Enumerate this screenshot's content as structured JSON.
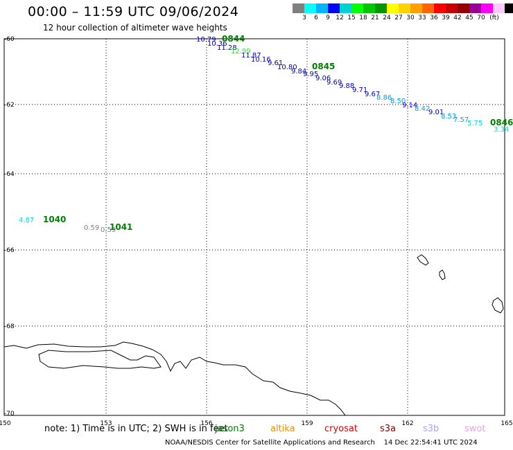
{
  "header": {
    "title": "00:00 – 11:59 UTC 09/06/2024",
    "subtitle": "12 hour collection of altimeter wave heights"
  },
  "colorbar": {
    "colors": [
      "#7f7f7f",
      "#00ffff",
      "#00b4ff",
      "#0000ff",
      "#00d2d2",
      "#00ff00",
      "#00c800",
      "#009600",
      "#ffff00",
      "#ffd200",
      "#ffa000",
      "#ff6400",
      "#ff0000",
      "#c80000",
      "#960000",
      "#960096",
      "#ff00ff",
      "#ffc8ff",
      "#000000"
    ],
    "labels": [
      "3",
      "6",
      "9",
      "12",
      "15",
      "18",
      "21",
      "24",
      "27",
      "30",
      "33",
      "36",
      "39",
      "42",
      "45",
      "70"
    ],
    "unit": "(ft)"
  },
  "axes": {
    "x_ticks": [
      "150",
      "153",
      "156",
      "159",
      "162",
      "165"
    ],
    "y_ticks": [
      "-60",
      "-62",
      "-64",
      "-66",
      "-68",
      "-70"
    ]
  },
  "passes": [
    {
      "label": "0844",
      "color": "#008000"
    },
    {
      "label": "0845",
      "color": "#008000"
    },
    {
      "label": "0846",
      "color": "#008000"
    },
    {
      "label": "1040",
      "color": "#008000"
    },
    {
      "label": "1041",
      "color": "#008000"
    }
  ],
  "wave_heights": [
    {
      "value": "10.79",
      "color": "#0000c8"
    },
    {
      "value": "10.36",
      "color": "#0000c8"
    },
    {
      "value": "11.28",
      "color": "#0000c8"
    },
    {
      "value": "12.99",
      "color": "#44dd44"
    },
    {
      "value": "11.87",
      "color": "#0000c8"
    },
    {
      "value": "10.16",
      "color": "#0000c8"
    },
    {
      "value": "9.61",
      "color": "#0000c8"
    },
    {
      "value": "10.80",
      "color": "#0000c8"
    },
    {
      "value": "9.84",
      "color": "#0000c8"
    },
    {
      "value": "9.95",
      "color": "#0000c8"
    },
    {
      "value": "9.06",
      "color": "#0000c8"
    },
    {
      "value": "9.69",
      "color": "#0000c8"
    },
    {
      "value": "9.88",
      "color": "#0000c8"
    },
    {
      "value": "9.71",
      "color": "#0000c8"
    },
    {
      "value": "9.67",
      "color": "#0000c8"
    },
    {
      "value": "8.86",
      "color": "#00a0ff"
    },
    {
      "value": "8.50",
      "color": "#00a0ff"
    },
    {
      "value": "9.14",
      "color": "#0000c8"
    },
    {
      "value": "8.42",
      "color": "#00a0ff"
    },
    {
      "value": "9.01",
      "color": "#0000c8"
    },
    {
      "value": "8.53",
      "color": "#00a0ff"
    },
    {
      "value": "7.57",
      "color": "#00a0ff"
    },
    {
      "value": "5.75",
      "color": "#00e0e0"
    },
    {
      "value": "3.34",
      "color": "#00e0e0"
    },
    {
      "value": "4.87",
      "color": "#00e0e0"
    },
    {
      "value": "0.59",
      "color": "#808080"
    },
    {
      "value": "0.59",
      "color": "#808080"
    }
  ],
  "note": "note: 1) Time is in UTC; 2) SWH is in feet",
  "satellites": [
    {
      "name": "jason3",
      "color": "#008000"
    },
    {
      "name": "altika",
      "color": "#ff8c00"
    },
    {
      "name": "cryosat",
      "color": "#e00000"
    },
    {
      "name": "s3a",
      "color": "#900000"
    },
    {
      "name": "s3b",
      "color": "#b0a0ff"
    },
    {
      "name": "swot",
      "color": "#f0a0e0"
    }
  ],
  "footer": {
    "credit": "NOAA/NESDIS Center for Satellite Applications and Research",
    "timestamp": "14 Dec 22:54:41 UTC 2024"
  }
}
